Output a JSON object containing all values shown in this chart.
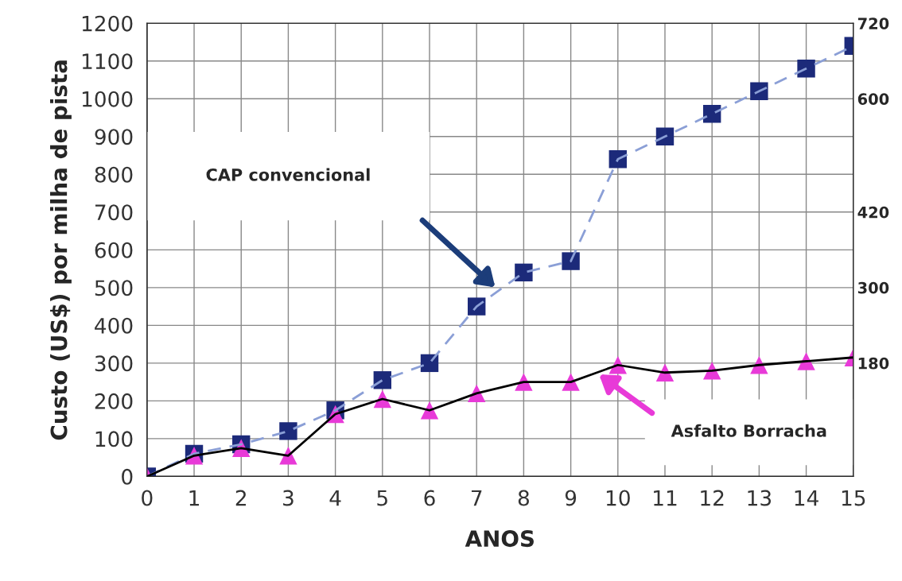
{
  "chart_data": {
    "type": "line",
    "xlabel": "ANOS",
    "ylabel": "Custo (US$) por milha de pista",
    "x": [
      0,
      1,
      2,
      3,
      4,
      5,
      6,
      7,
      8,
      9,
      10,
      11,
      12,
      13,
      14,
      15
    ],
    "series": [
      {
        "color": "#8b9fd6",
        "line_style": "dashed",
        "marker": "square",
        "colors": [
          "#1c2a7a",
          "#1c2a7a",
          "#1c2a7a",
          "#1c2a7a",
          "#1c2a7a",
          "#1c2a7a",
          "#1c2a7a",
          "#1c2a7a",
          "#1c2a7a",
          "#1c2a7a",
          "#1c2a7a",
          "#1c2a7a",
          "#1c2a7a",
          "#1c2a7a",
          "#1c2a7a",
          "#1c2a7a"
        ],
        "values": [
          0,
          60,
          85,
          120,
          175,
          255,
          300,
          450,
          540,
          570,
          840,
          900,
          960,
          1020,
          1080,
          1140
        ]
      },
      {
        "color": "#000000",
        "line_style": "solid",
        "marker": "triangle",
        "colors": [
          "#e83ad8",
          "#e83ad8",
          "#e83ad8",
          "#e83ad8",
          "#e83ad8",
          "#e83ad8",
          "#e83ad8",
          "#e83ad8",
          "#e83ad8",
          "#e83ad8",
          "#e83ad8",
          "#e83ad8",
          "#e83ad8",
          "#e83ad8",
          "#e83ad8",
          "#e83ad8"
        ],
        "values": [
          0,
          55,
          75,
          55,
          165,
          205,
          175,
          220,
          250,
          250,
          295,
          275,
          280,
          295,
          305,
          315
        ]
      }
    ],
    "xlim": [
      0,
      15
    ],
    "xticks": [
      0,
      1,
      2,
      3,
      4,
      5,
      6,
      7,
      8,
      9,
      10,
      11,
      12,
      13,
      14,
      15
    ],
    "ylim": [
      0,
      1200
    ],
    "yticks": [
      0,
      100,
      200,
      300,
      400,
      500,
      600,
      700,
      800,
      900,
      1000,
      1100,
      1200
    ],
    "y2lim": [
      0,
      720
    ],
    "y2ticks": [
      180,
      300,
      420,
      600,
      720
    ],
    "grid": true,
    "legend": false,
    "annotations": [
      "CAP convencional",
      "Asfalto Borracha"
    ]
  }
}
